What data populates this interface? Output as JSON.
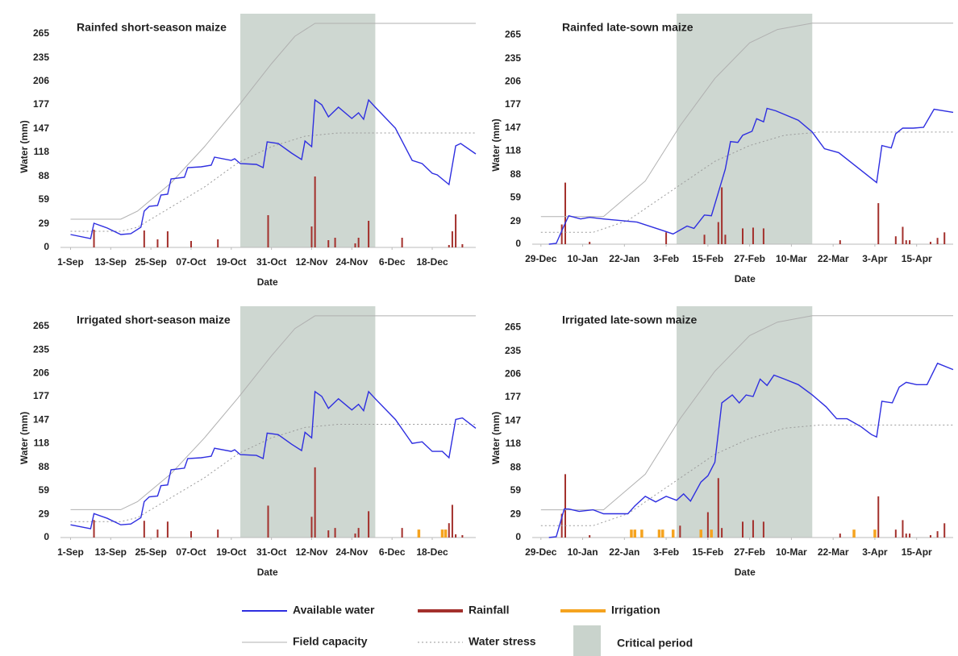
{
  "chart_data": [
    {
      "type": "line",
      "title": "Rainfed short-season maize",
      "xlabel": "Date",
      "ylabel": "Water (mm)",
      "xlim": [
        -3,
        121
      ],
      "ylim": [
        0,
        290
      ],
      "xticks": [
        {
          "value": 0,
          "label": "1-Sep"
        },
        {
          "value": 12,
          "label": "13-Sep"
        },
        {
          "value": 24,
          "label": "25-Sep"
        },
        {
          "value": 36,
          "label": "07-Oct"
        },
        {
          "value": 48,
          "label": "19-Oct"
        },
        {
          "value": 60,
          "label": "31-Oct"
        },
        {
          "value": 72,
          "label": "12-Nov"
        },
        {
          "value": 84,
          "label": "24-Nov"
        },
        {
          "value": 96,
          "label": "6-Dec"
        },
        {
          "value": 108,
          "label": "18-Dec"
        }
      ],
      "yticks": [
        0,
        29,
        59,
        88,
        118,
        147,
        177,
        206,
        235,
        265
      ],
      "highlight": {
        "name": "Critical period",
        "x": [
          50.7,
          91
        ],
        "color": "#c9d3cc"
      },
      "series": [
        {
          "name": "Available water",
          "type": "line",
          "style": "solid",
          "color": "#2e2ee0",
          "x": [
            0,
            6,
            7,
            11,
            15,
            18,
            21,
            22,
            23.5,
            26,
            27,
            29,
            30,
            34,
            35,
            39,
            42,
            43,
            48,
            49,
            50.7,
            55.5,
            57.5,
            58.7,
            62,
            66,
            69,
            70,
            72,
            73,
            75,
            77,
            78,
            80,
            84,
            86,
            87.5,
            89,
            91,
            97,
            102,
            105,
            108,
            109.5,
            113,
            115,
            116.5,
            121
          ],
          "values": [
            16,
            11,
            30,
            24,
            16,
            17,
            25,
            45,
            51,
            52,
            65,
            66,
            85,
            87,
            99,
            100,
            102,
            112,
            108,
            110,
            104,
            103,
            99,
            131,
            129,
            117,
            109,
            132,
            125,
            183,
            177,
            162,
            166,
            174,
            160,
            167,
            159,
            183,
            174,
            148,
            108,
            104,
            92,
            90,
            78,
            126,
            129,
            116
          ]
        },
        {
          "name": "Rainfall",
          "type": "bar",
          "color": "#a3302c",
          "x": [
            7,
            22,
            26,
            29,
            36,
            44,
            59,
            72,
            73,
            77,
            79,
            85,
            86,
            89,
            99,
            113,
            114,
            115,
            117
          ],
          "values": [
            22,
            21,
            10,
            20,
            8,
            10,
            40,
            26,
            88,
            9,
            12,
            5,
            12,
            33,
            12,
            3,
            20,
            41,
            4
          ]
        },
        {
          "name": "Field capacity",
          "type": "line",
          "style": "solid",
          "color": "#b0b0b0",
          "x": [
            0,
            15,
            20,
            30,
            40,
            50,
            60,
            67,
            73,
            121
          ],
          "values": [
            35,
            35,
            45,
            80,
            125,
            175,
            228,
            262,
            278,
            278
          ]
        },
        {
          "name": "Water stress",
          "type": "line",
          "style": "dotted",
          "color": "#9a9a9a",
          "x": [
            0,
            15,
            20,
            30,
            40,
            50,
            60,
            70,
            80,
            121
          ],
          "values": [
            20,
            20,
            25,
            50,
            75,
            105,
            125,
            138,
            142,
            142
          ]
        }
      ]
    },
    {
      "type": "line",
      "title": "Rainfed late-sown maize",
      "xlabel": "Date",
      "ylabel": "Water (mm)",
      "xlim": [
        -2.5,
        118.5
      ],
      "ylim": [
        0,
        292
      ],
      "xticks": [
        {
          "value": 0,
          "label": "29-Dec"
        },
        {
          "value": 12,
          "label": "10-Jan"
        },
        {
          "value": 24,
          "label": "22-Jan"
        },
        {
          "value": 36,
          "label": "3-Feb"
        },
        {
          "value": 48,
          "label": "15-Feb"
        },
        {
          "value": 60,
          "label": "27-Feb"
        },
        {
          "value": 72,
          "label": "10-Mar"
        },
        {
          "value": 84,
          "label": "22-Mar"
        },
        {
          "value": 96,
          "label": "3-Apr"
        },
        {
          "value": 108,
          "label": "15-Apr"
        }
      ],
      "yticks": [
        0,
        29,
        59,
        88,
        118,
        147,
        177,
        206,
        235,
        265
      ],
      "highlight": {
        "name": "Critical period",
        "x": [
          39,
          78
        ],
        "color": "#c9d3cc"
      },
      "series": [
        {
          "name": "Available water",
          "type": "line",
          "style": "solid",
          "color": "#2e2ee0",
          "x": [
            2.3,
            4.4,
            6.7,
            8,
            11.4,
            14,
            18,
            27.6,
            34.6,
            38,
            42,
            44,
            47,
            49,
            53,
            54.5,
            56.6,
            58,
            60.7,
            62,
            64,
            65,
            67.5,
            74,
            78,
            81.5,
            85.6,
            96.5,
            98,
            100.7,
            102,
            104,
            107,
            110,
            113,
            118.5
          ],
          "values": [
            0,
            1,
            24,
            36,
            32,
            34,
            32,
            28,
            18,
            13,
            23,
            20,
            37,
            36,
            95,
            130,
            129,
            138,
            143,
            159,
            155,
            172,
            169,
            157,
            142,
            121,
            116,
            78,
            125,
            122,
            140,
            147,
            147,
            148,
            171,
            167
          ]
        },
        {
          "name": "Rainfall",
          "type": "bar",
          "color": "#a3302c",
          "x": [
            6,
            7,
            14,
            36,
            47,
            51,
            52,
            53,
            58,
            61,
            64,
            86,
            97,
            102,
            104,
            105,
            106,
            112,
            114,
            116
          ],
          "values": [
            25,
            78,
            3,
            15,
            12,
            28,
            72,
            12,
            20,
            21,
            20,
            5,
            52,
            10,
            22,
            5,
            5,
            3,
            8,
            15
          ]
        },
        {
          "name": "Field capacity",
          "type": "line",
          "style": "solid",
          "color": "#b0b0b0",
          "x": [
            0,
            18,
            30,
            40,
            50,
            60,
            68,
            78,
            118.5
          ],
          "values": [
            35,
            35,
            80,
            150,
            210,
            255,
            272,
            280,
            280
          ]
        },
        {
          "name": "Water stress",
          "type": "line",
          "style": "dotted",
          "color": "#9a9a9a",
          "x": [
            0,
            15,
            25,
            40,
            50,
            60,
            70,
            80,
            118.5
          ],
          "values": [
            15,
            15,
            30,
            75,
            105,
            125,
            138,
            142,
            142
          ]
        }
      ]
    },
    {
      "type": "line",
      "title": "Irrigated short-season maize",
      "xlabel": "Date",
      "ylabel": "Water (mm)",
      "xlim": [
        -3,
        121
      ],
      "ylim": [
        0,
        290
      ],
      "xticks": [
        {
          "value": 0,
          "label": "1-Sep"
        },
        {
          "value": 12,
          "label": "13-Sep"
        },
        {
          "value": 24,
          "label": "25-Sep"
        },
        {
          "value": 36,
          "label": "07-Oct"
        },
        {
          "value": 48,
          "label": "19-Oct"
        },
        {
          "value": 60,
          "label": "31-Oct"
        },
        {
          "value": 72,
          "label": "12-Nov"
        },
        {
          "value": 84,
          "label": "24-Nov"
        },
        {
          "value": 96,
          "label": "6-Dec"
        },
        {
          "value": 108,
          "label": "18-Dec"
        }
      ],
      "yticks": [
        0,
        29,
        59,
        88,
        118,
        147,
        177,
        206,
        235,
        265
      ],
      "highlight": {
        "name": "Critical period",
        "x": [
          50.7,
          91
        ],
        "color": "#c9d3cc"
      },
      "series": [
        {
          "name": "Available water",
          "type": "line",
          "style": "solid",
          "color": "#2e2ee0",
          "x": [
            0,
            6,
            7,
            11,
            15,
            18,
            21,
            22,
            23.5,
            26,
            27,
            29,
            30,
            34,
            35,
            39,
            42,
            43,
            48,
            49,
            50.7,
            55.5,
            57.5,
            58.7,
            62,
            66,
            69,
            70,
            72,
            73,
            75,
            77,
            78,
            80,
            84,
            86,
            87.5,
            89,
            91,
            97,
            102,
            105,
            108,
            111,
            113,
            115,
            117,
            121
          ],
          "values": [
            16,
            11,
            30,
            24,
            16,
            17,
            25,
            45,
            51,
            52,
            65,
            66,
            85,
            87,
            99,
            100,
            102,
            112,
            108,
            110,
            104,
            103,
            99,
            131,
            129,
            117,
            109,
            132,
            125,
            183,
            177,
            162,
            166,
            174,
            160,
            167,
            159,
            183,
            174,
            148,
            118,
            120,
            108,
            108,
            100,
            148,
            150,
            137
          ]
        },
        {
          "name": "Rainfall",
          "type": "bar",
          "color": "#a3302c",
          "x": [
            7,
            22,
            26,
            29,
            36,
            44,
            59,
            72,
            73,
            77,
            79,
            85,
            86,
            89,
            99,
            113,
            114,
            115,
            117
          ],
          "values": [
            22,
            21,
            10,
            20,
            8,
            10,
            40,
            26,
            88,
            9,
            12,
            5,
            12,
            33,
            12,
            18,
            41,
            4,
            3
          ]
        },
        {
          "name": "Irrigation",
          "type": "bar",
          "color": "#f5a31f",
          "x": [
            104,
            111,
            112
          ],
          "values": [
            10,
            10,
            10
          ]
        },
        {
          "name": "Field capacity",
          "type": "line",
          "style": "solid",
          "color": "#b0b0b0",
          "x": [
            0,
            15,
            20,
            30,
            40,
            50,
            60,
            67,
            73,
            121
          ],
          "values": [
            35,
            35,
            45,
            80,
            125,
            175,
            228,
            262,
            278,
            278
          ]
        },
        {
          "name": "Water stress",
          "type": "line",
          "style": "dotted",
          "color": "#9a9a9a",
          "x": [
            0,
            15,
            20,
            30,
            40,
            50,
            60,
            70,
            80,
            121
          ],
          "values": [
            20,
            20,
            25,
            50,
            75,
            105,
            125,
            138,
            142,
            142
          ]
        }
      ]
    },
    {
      "type": "line",
      "title": "Irrigated late-sown maize",
      "xlabel": "Date",
      "ylabel": "Water (mm)",
      "xlim": [
        -2.5,
        118.5
      ],
      "ylim": [
        0,
        292
      ],
      "xticks": [
        {
          "value": 0,
          "label": "29-Dec"
        },
        {
          "value": 12,
          "label": "10-Jan"
        },
        {
          "value": 24,
          "label": "22-Jan"
        },
        {
          "value": 36,
          "label": "3-Feb"
        },
        {
          "value": 48,
          "label": "15-Feb"
        },
        {
          "value": 60,
          "label": "27-Feb"
        },
        {
          "value": 72,
          "label": "10-Mar"
        },
        {
          "value": 84,
          "label": "22-Mar"
        },
        {
          "value": 96,
          "label": "3-Apr"
        },
        {
          "value": 108,
          "label": "15-Apr"
        }
      ],
      "yticks": [
        0,
        29,
        59,
        88,
        118,
        147,
        177,
        206,
        235,
        265
      ],
      "highlight": {
        "name": "Critical period",
        "x": [
          39,
          78
        ],
        "color": "#c9d3cc"
      },
      "series": [
        {
          "name": "Available water",
          "type": "line",
          "style": "solid",
          "color": "#2e2ee0",
          "x": [
            2.3,
            4.4,
            6.7,
            8,
            11,
            15,
            18,
            25,
            27,
            30,
            33,
            36,
            39,
            41,
            43,
            46,
            48,
            50,
            52,
            55,
            57,
            59,
            61,
            63,
            65,
            67,
            70,
            74,
            78,
            82,
            85,
            88,
            92,
            95,
            96.5,
            98,
            101,
            103,
            105,
            108,
            111,
            114,
            118.5
          ],
          "values": [
            0,
            1,
            36,
            36,
            33,
            35,
            30,
            30,
            40,
            52,
            45,
            52,
            47,
            55,
            46,
            70,
            78,
            95,
            170,
            180,
            170,
            180,
            178,
            200,
            192,
            205,
            200,
            193,
            180,
            165,
            150,
            150,
            140,
            130,
            127,
            172,
            170,
            190,
            196,
            193,
            193,
            220,
            212
          ]
        },
        {
          "name": "Rainfall",
          "type": "bar",
          "color": "#a3302c",
          "x": [
            6,
            7,
            14,
            40,
            48,
            51,
            52,
            58,
            61,
            64,
            86,
            97,
            102,
            104,
            105,
            106,
            112,
            114,
            116
          ],
          "values": [
            30,
            80,
            3,
            15,
            32,
            75,
            12,
            20,
            22,
            20,
            5,
            52,
            10,
            22,
            5,
            5,
            3,
            8,
            18
          ]
        },
        {
          "name": "Irrigation",
          "type": "bar",
          "color": "#f5a31f",
          "x": [
            26,
            27,
            29,
            34,
            35,
            38,
            46,
            49,
            90,
            96
          ],
          "values": [
            10,
            10,
            10,
            10,
            10,
            10,
            10,
            10,
            10,
            10
          ]
        },
        {
          "name": "Field capacity",
          "type": "line",
          "style": "solid",
          "color": "#b0b0b0",
          "x": [
            0,
            18,
            30,
            40,
            50,
            60,
            68,
            78,
            118.5
          ],
          "values": [
            35,
            35,
            80,
            150,
            210,
            255,
            272,
            280,
            280
          ]
        },
        {
          "name": "Water stress",
          "type": "line",
          "style": "dotted",
          "color": "#9a9a9a",
          "x": [
            0,
            15,
            25,
            40,
            50,
            60,
            70,
            80,
            118.5
          ],
          "values": [
            15,
            15,
            30,
            75,
            105,
            125,
            138,
            142,
            142
          ]
        }
      ]
    }
  ]
}
